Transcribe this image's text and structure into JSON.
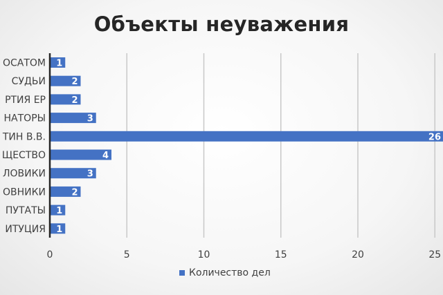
{
  "chart_data": {
    "type": "bar",
    "orientation": "horizontal",
    "title": "Объекты неуважения",
    "categories": [
      "ОСАТОМ",
      "СУДЬИ",
      "РТИЯ ЕР",
      "НАТОРЫ",
      "ТИН В.В.",
      "ЩЕСТВО",
      "ЛОВИКИ",
      "ОВНИКИ",
      "ПУТАТЫ",
      "ИТУЦИЯ"
    ],
    "series": [
      {
        "name": "Количество дел",
        "values": [
          1,
          2,
          2,
          3,
          26,
          4,
          3,
          2,
          1,
          1
        ],
        "color": "#4472C4"
      }
    ],
    "xticks": [
      0,
      5,
      10,
      15,
      20,
      25
    ],
    "xlim": [
      0,
      26
    ],
    "grid": true,
    "data_labels": true,
    "legend": "bottom"
  }
}
